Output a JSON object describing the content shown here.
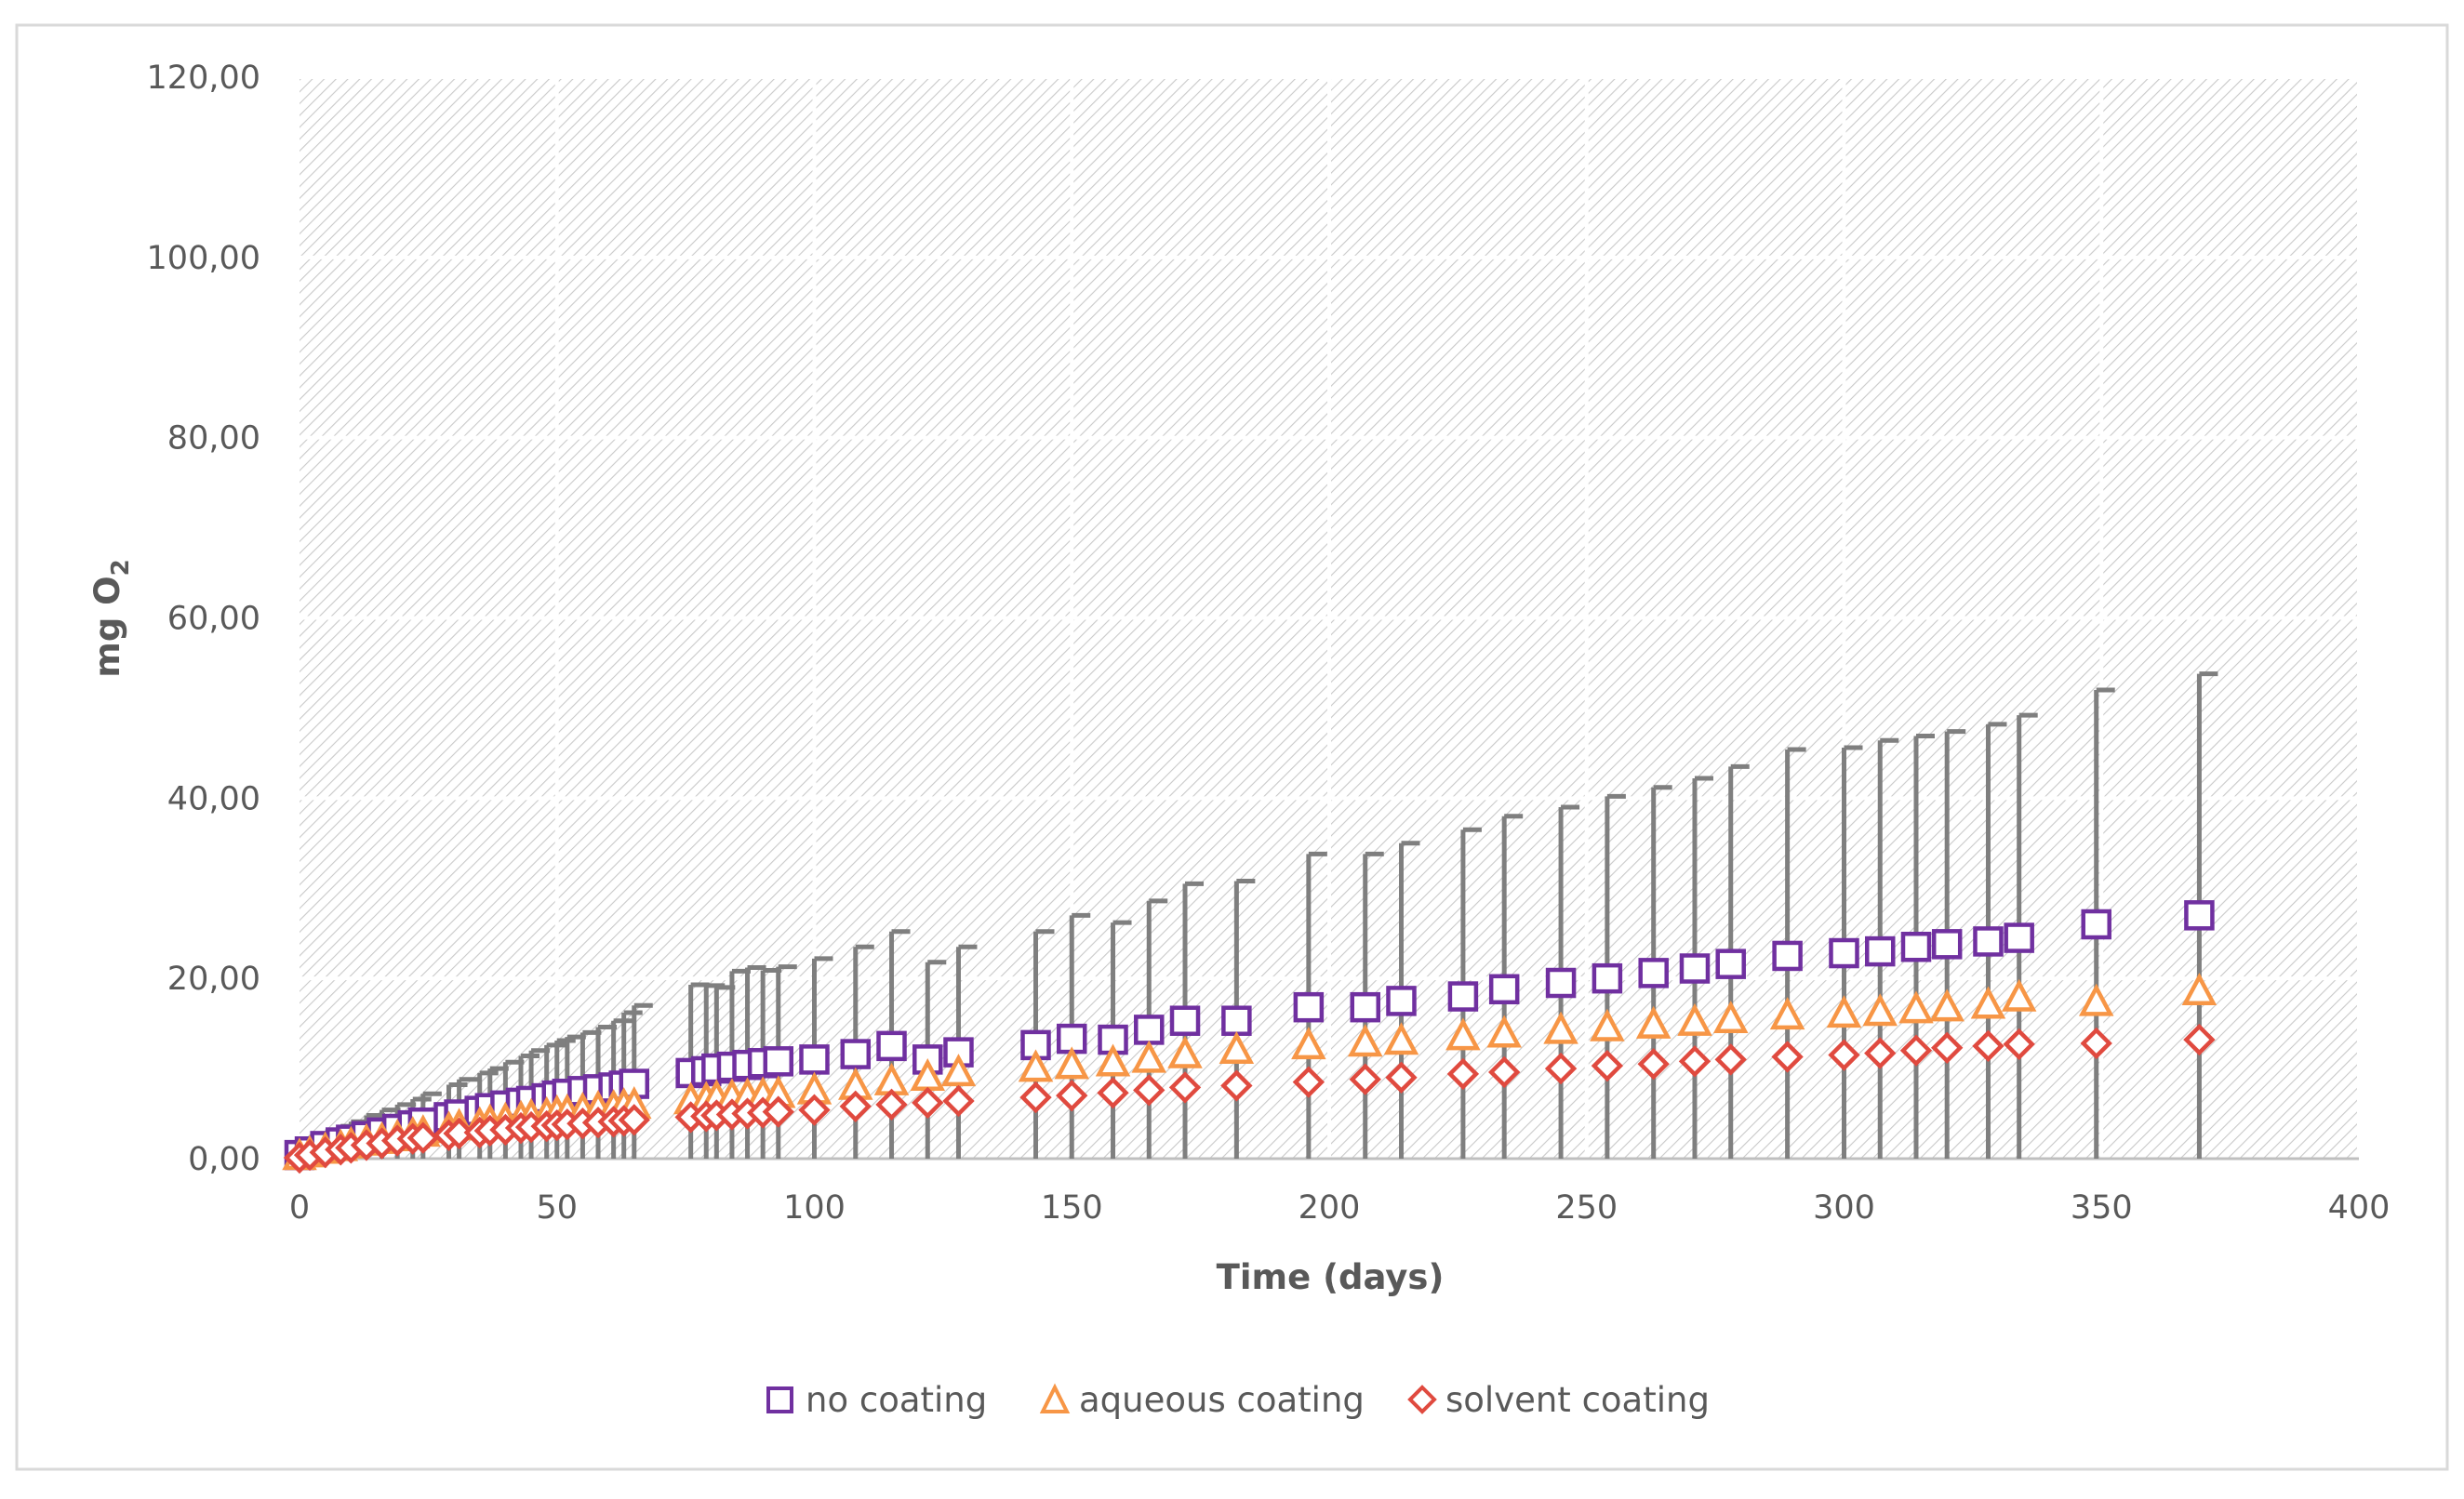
{
  "chart_data": {
    "type": "scatter",
    "title": "",
    "xlabel": "Time (days)",
    "ylabel": "mg O",
    "ylabel_subscript": "2",
    "xlim": [
      0,
      400
    ],
    "ylim": [
      0,
      120
    ],
    "x_ticks": [
      "0",
      "50",
      "100",
      "150",
      "200",
      "250",
      "300",
      "350",
      "400"
    ],
    "y_ticks": [
      "0,00",
      "20,00",
      "40,00",
      "60,00",
      "80,00",
      "100,00",
      "120,00"
    ],
    "x_tick_values": [
      0,
      50,
      100,
      150,
      200,
      250,
      300,
      350,
      400
    ],
    "y_tick_values": [
      0,
      20,
      40,
      60,
      80,
      100,
      120
    ],
    "grid": true,
    "legend_position": "bottom",
    "x": [
      0,
      2,
      5,
      8,
      10,
      13,
      16,
      19,
      22,
      24,
      29,
      31,
      35,
      37,
      40,
      43,
      45,
      48,
      50,
      52,
      55,
      58,
      61,
      63,
      65,
      76,
      79,
      81,
      84,
      87,
      90,
      93,
      100,
      108,
      115,
      122,
      128,
      143,
      150,
      158,
      165,
      172,
      182,
      196,
      207,
      214,
      226,
      234,
      245,
      254,
      263,
      271,
      278,
      289,
      300,
      307,
      314,
      320,
      328,
      334,
      349,
      369
    ],
    "series": [
      {
        "name": "no coating",
        "color": "#7030A0",
        "marker": "square",
        "values": [
          0.4,
          0.8,
          1.4,
          1.8,
          2.1,
          2.5,
          2.9,
          3.3,
          3.7,
          4.0,
          4.6,
          4.9,
          5.3,
          5.6,
          5.9,
          6.2,
          6.4,
          6.7,
          7.0,
          7.2,
          7.5,
          7.7,
          7.9,
          8.1,
          8.3,
          9.5,
          9.7,
          10.0,
          10.2,
          10.4,
          10.6,
          10.8,
          11.0,
          11.6,
          12.5,
          11.0,
          11.8,
          12.6,
          13.3,
          13.2,
          14.3,
          15.3,
          15.3,
          16.8,
          16.8,
          17.5,
          18.0,
          18.8,
          19.5,
          20.0,
          20.6,
          21.1,
          21.6,
          22.5,
          22.8,
          23.0,
          23.5,
          23.8,
          24.1,
          24.5,
          26.0,
          27.0
        ]
      },
      {
        "name": "aqueous coating",
        "color": "#F79646",
        "marker": "triangle",
        "values": [
          0.2,
          0.5,
          0.9,
          1.2,
          1.5,
          1.8,
          2.0,
          2.3,
          2.6,
          2.8,
          3.2,
          3.5,
          3.7,
          4.0,
          4.2,
          4.4,
          4.6,
          4.8,
          5.0,
          5.1,
          5.3,
          5.5,
          5.6,
          5.8,
          5.9,
          6.4,
          6.5,
          6.7,
          6.8,
          6.9,
          7.0,
          7.1,
          7.5,
          8.0,
          8.5,
          9.0,
          9.5,
          10.0,
          10.3,
          10.6,
          11.0,
          11.5,
          12.0,
          12.5,
          12.8,
          13.0,
          13.5,
          13.8,
          14.2,
          14.5,
          14.8,
          15.1,
          15.4,
          15.8,
          16.0,
          16.2,
          16.5,
          16.7,
          17.0,
          17.8,
          17.3,
          18.5
        ]
      },
      {
        "name": "solvent coating",
        "color": "#E04A3F",
        "marker": "diamond",
        "values": [
          0.1,
          0.4,
          0.7,
          1.0,
          1.2,
          1.5,
          1.7,
          2.0,
          2.2,
          2.3,
          2.6,
          2.8,
          2.9,
          3.1,
          3.2,
          3.4,
          3.5,
          3.6,
          3.7,
          3.8,
          3.9,
          4.0,
          4.1,
          4.2,
          4.3,
          4.6,
          4.7,
          4.8,
          4.9,
          5.0,
          5.1,
          5.2,
          5.4,
          5.8,
          6.0,
          6.2,
          6.4,
          6.8,
          7.0,
          7.3,
          7.6,
          7.9,
          8.1,
          8.5,
          8.8,
          9.0,
          9.4,
          9.6,
          10.0,
          10.3,
          10.5,
          10.8,
          11.0,
          11.3,
          11.5,
          11.7,
          12.0,
          12.3,
          12.5,
          12.7,
          12.8,
          13.2
        ]
      }
    ],
    "error_bar_upper": [
      1.0,
      2.0,
      3.0,
      3.6,
      4.1,
      4.8,
      5.4,
      6.0,
      6.6,
      7.2,
      8.2,
      8.8,
      9.5,
      10.0,
      10.7,
      11.4,
      12.0,
      12.6,
      13.1,
      13.5,
      14.0,
      14.6,
      15.3,
      16.2,
      17.0,
      19.3,
      19.2,
      19.0,
      20.8,
      21.2,
      20.9,
      21.3,
      22.2,
      23.5,
      25.2,
      21.8,
      23.5,
      25.2,
      27.0,
      26.2,
      28.6,
      30.5,
      30.8,
      33.8,
      33.8,
      35.0,
      36.5,
      38.0,
      39.0,
      40.2,
      41.2,
      42.2,
      43.5,
      45.4,
      45.6,
      46.4,
      46.9,
      47.4,
      48.2,
      49.2,
      52.0,
      53.8
    ]
  },
  "legend": {
    "items": [
      "no coating",
      "aqueous coating",
      "solvent coating"
    ]
  }
}
